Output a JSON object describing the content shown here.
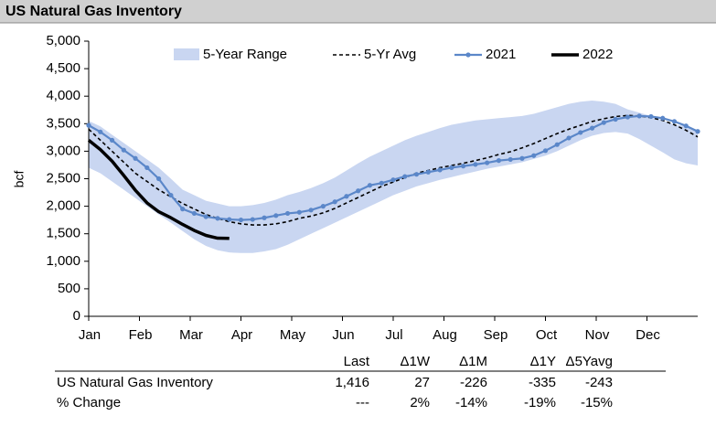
{
  "chart_data": {
    "type": "line",
    "title": "US Natural Gas Inventory",
    "ylabel": "bcf",
    "xlim": [
      0,
      12
    ],
    "xticks": [
      {
        "value": 0,
        "label": "Jan"
      },
      {
        "value": 1,
        "label": "Feb"
      },
      {
        "value": 2,
        "label": "Mar"
      },
      {
        "value": 3,
        "label": "Apr"
      },
      {
        "value": 4,
        "label": "May"
      },
      {
        "value": 5,
        "label": "Jun"
      },
      {
        "value": 6,
        "label": "Jul"
      },
      {
        "value": 7,
        "label": "Aug"
      },
      {
        "value": 8,
        "label": "Sep"
      },
      {
        "value": 9,
        "label": "Oct"
      },
      {
        "value": 10,
        "label": "Nov"
      },
      {
        "value": 11,
        "label": "Dec"
      }
    ],
    "ylim": [
      0,
      5000
    ],
    "yticks": [
      0,
      500,
      {
        "value": 1000,
        "label": "1,000"
      },
      {
        "value": 1500,
        "label": "1,500"
      },
      {
        "value": 2000,
        "label": "2,000"
      },
      {
        "value": 2500,
        "label": "2,500"
      },
      {
        "value": 3000,
        "label": "3,000"
      },
      {
        "value": 3500,
        "label": "3,500"
      },
      {
        "value": 4000,
        "label": "4,000"
      },
      {
        "value": 4500,
        "label": "4,500"
      },
      {
        "value": 5000,
        "label": "5,000"
      }
    ],
    "grid": false,
    "x": [
      0,
      0.23,
      0.46,
      0.69,
      0.92,
      1.15,
      1.38,
      1.62,
      1.85,
      2.08,
      2.31,
      2.54,
      2.77,
      3.0,
      3.23,
      3.46,
      3.69,
      3.92,
      4.15,
      4.38,
      4.62,
      4.85,
      5.08,
      5.31,
      5.54,
      5.77,
      6.0,
      6.23,
      6.46,
      6.69,
      6.92,
      7.15,
      7.38,
      7.62,
      7.85,
      8.08,
      8.31,
      8.54,
      8.77,
      9.0,
      9.23,
      9.46,
      9.69,
      9.92,
      10.15,
      10.38,
      10.62,
      10.85,
      11.08,
      11.31,
      11.54,
      11.77,
      12.0
    ],
    "range": {
      "name": "5-Year Range",
      "color": "#c9d6f1",
      "low": [
        2700,
        2600,
        2450,
        2300,
        2150,
        2000,
        1850,
        1700,
        1550,
        1400,
        1280,
        1200,
        1160,
        1150,
        1150,
        1180,
        1220,
        1300,
        1400,
        1500,
        1600,
        1700,
        1800,
        1900,
        2000,
        2100,
        2200,
        2280,
        2360,
        2420,
        2480,
        2530,
        2580,
        2630,
        2680,
        2720,
        2760,
        2800,
        2860,
        2920,
        3000,
        3100,
        3200,
        3280,
        3330,
        3350,
        3320,
        3220,
        3100,
        2980,
        2850,
        2780,
        2740
      ],
      "high": [
        3550,
        3450,
        3300,
        3150,
        3000,
        2850,
        2700,
        2500,
        2300,
        2200,
        2100,
        2050,
        2000,
        2000,
        2020,
        2060,
        2120,
        2200,
        2260,
        2330,
        2420,
        2520,
        2650,
        2780,
        2900,
        3000,
        3100,
        3200,
        3280,
        3350,
        3420,
        3480,
        3520,
        3560,
        3580,
        3600,
        3620,
        3640,
        3680,
        3740,
        3800,
        3860,
        3900,
        3920,
        3900,
        3860,
        3760,
        3700,
        3640,
        3560,
        3480,
        3460,
        3380
      ]
    },
    "series": [
      {
        "name": "5-Yr Avg",
        "color": "#000000",
        "style": "dashed",
        "values": [
          3400,
          3200,
          3000,
          2800,
          2600,
          2450,
          2300,
          2170,
          2050,
          1950,
          1850,
          1780,
          1720,
          1680,
          1660,
          1660,
          1680,
          1720,
          1780,
          1820,
          1880,
          1960,
          2060,
          2160,
          2260,
          2360,
          2440,
          2520,
          2600,
          2650,
          2700,
          2740,
          2780,
          2830,
          2880,
          2940,
          2990,
          3060,
          3140,
          3230,
          3320,
          3400,
          3470,
          3540,
          3590,
          3630,
          3650,
          3640,
          3610,
          3560,
          3480,
          3380,
          3260
        ]
      },
      {
        "name": "2021",
        "color": "#5b87c9",
        "style": "markers",
        "values": [
          3470,
          3350,
          3200,
          3020,
          2870,
          2700,
          2500,
          2200,
          1950,
          1870,
          1810,
          1780,
          1760,
          1750,
          1760,
          1790,
          1830,
          1870,
          1890,
          1930,
          2000,
          2080,
          2180,
          2280,
          2380,
          2420,
          2480,
          2540,
          2580,
          2620,
          2660,
          2700,
          2730,
          2760,
          2790,
          2830,
          2850,
          2870,
          2920,
          3010,
          3120,
          3240,
          3340,
          3420,
          3520,
          3580,
          3620,
          3640,
          3630,
          3600,
          3540,
          3460,
          3360
        ]
      },
      {
        "name": "2022",
        "color": "#000000",
        "style": "thick",
        "values": [
          3200,
          3030,
          2820,
          2560,
          2290,
          2060,
          1900,
          1790,
          1670,
          1560,
          1470,
          1420,
          1416,
          null,
          null,
          null,
          null,
          null,
          null,
          null,
          null,
          null,
          null,
          null,
          null,
          null,
          null,
          null,
          null,
          null,
          null,
          null,
          null,
          null,
          null,
          null,
          null,
          null,
          null,
          null,
          null,
          null,
          null,
          null,
          null,
          null,
          null,
          null,
          null,
          null,
          null,
          null,
          null
        ]
      }
    ]
  },
  "table": {
    "columns": [
      "Last",
      "Δ1W",
      "Δ1M",
      "Δ1Y",
      "Δ5Yavg"
    ],
    "rows": [
      [
        "US Natural Gas Inventory",
        "1,416",
        "27",
        "-226",
        "-335",
        "-243"
      ],
      [
        "% Change",
        "---",
        "2%",
        "-14%",
        "-19%",
        "-15%"
      ]
    ]
  }
}
